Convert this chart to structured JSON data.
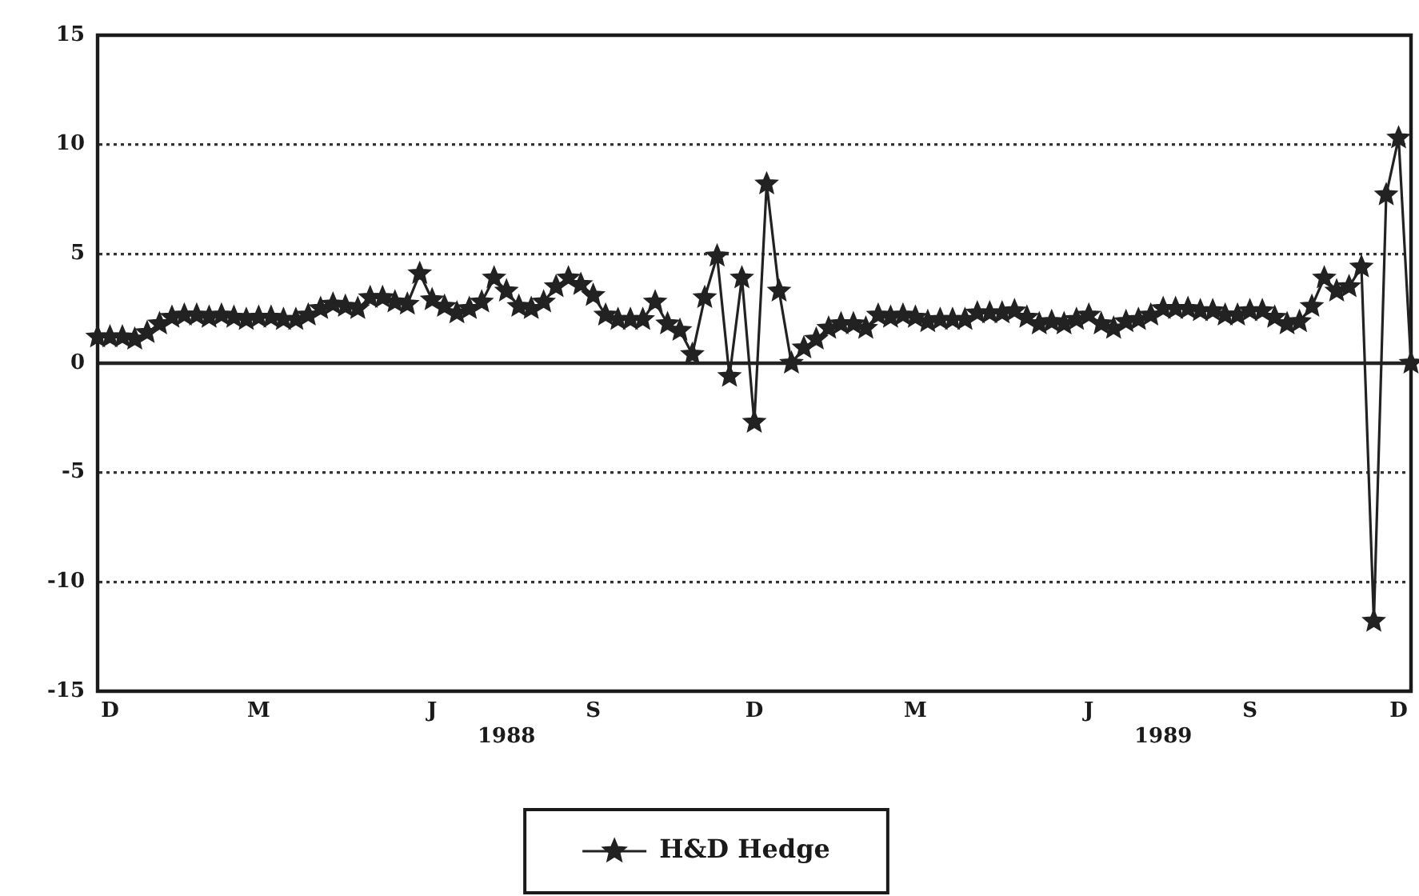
{
  "chart_data": {
    "type": "line",
    "categories": [
      null,
      "D",
      null,
      null,
      null,
      null,
      null,
      null,
      null,
      null,
      null,
      null,
      null,
      "M",
      null,
      null,
      null,
      null,
      null,
      null,
      null,
      null,
      null,
      null,
      null,
      null,
      null,
      "J",
      null,
      null,
      null,
      null,
      null,
      "\n1988",
      null,
      null,
      null,
      null,
      null,
      null,
      "S",
      null,
      null,
      null,
      null,
      null,
      null,
      null,
      null,
      null,
      null,
      null,
      null,
      "D",
      null,
      null,
      null,
      null,
      null,
      null,
      null,
      null,
      null,
      null,
      null,
      null,
      "M",
      null,
      null,
      null,
      null,
      null,
      null,
      null,
      null,
      null,
      null,
      null,
      null,
      null,
      "J",
      null,
      null,
      null,
      null,
      null,
      "\n1989",
      null,
      null,
      null,
      null,
      null,
      null,
      "S",
      null,
      null,
      null,
      null,
      null,
      null,
      null,
      null,
      null,
      null,
      null,
      "D",
      null
    ],
    "series": [
      {
        "name": "H&D Hedge",
        "color": "#222222",
        "values": [
          1.2,
          1.2,
          1.2,
          1.1,
          1.4,
          1.8,
          2.1,
          2.2,
          2.2,
          2.1,
          2.2,
          2.1,
          2.0,
          2.1,
          2.1,
          2.0,
          2.0,
          2.2,
          2.5,
          2.7,
          2.6,
          2.5,
          3.0,
          3.0,
          2.8,
          2.7,
          4.1,
          2.9,
          2.6,
          2.3,
          2.5,
          2.8,
          3.9,
          3.3,
          2.6,
          2.5,
          2.8,
          3.5,
          3.9,
          3.6,
          3.1,
          2.2,
          2.0,
          2.0,
          2.0,
          2.8,
          1.8,
          1.5,
          0.4,
          3.0,
          4.9,
          -0.6,
          3.9,
          -2.7,
          8.2,
          3.3,
          0.0,
          0.7,
          1.1,
          1.6,
          1.8,
          1.8,
          1.6,
          2.2,
          2.1,
          2.2,
          2.1,
          1.9,
          2.0,
          2.0,
          2.0,
          2.3,
          2.3,
          2.3,
          2.4,
          2.1,
          1.8,
          1.9,
          1.8,
          2.0,
          2.2,
          1.8,
          1.6,
          1.9,
          2.0,
          2.2,
          2.5,
          2.5,
          2.5,
          2.4,
          2.4,
          2.2,
          2.2,
          2.4,
          2.4,
          2.1,
          1.8,
          1.9,
          2.6,
          3.9,
          3.3,
          3.5,
          4.4,
          -11.8,
          7.7,
          10.3,
          0.0
        ]
      }
    ],
    "ylim": [
      -15,
      15
    ],
    "yticks": [
      -15,
      -10,
      -5,
      0,
      5,
      10,
      15
    ],
    "ref_lines": [
      {
        "axis": "y",
        "value": 0,
        "color": "#222222"
      }
    ],
    "grid": "y",
    "legend": "bottom",
    "marker": "star",
    "line_style": "solid"
  }
}
